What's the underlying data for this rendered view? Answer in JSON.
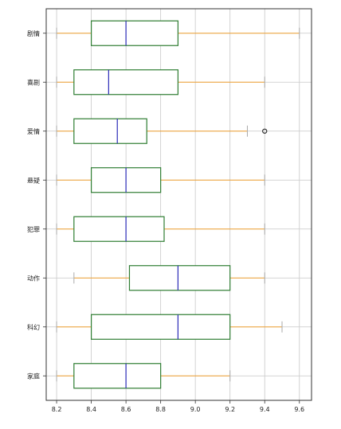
{
  "chart_data": {
    "type": "boxplot",
    "orientation": "horizontal",
    "title": "",
    "xlabel": "",
    "ylabel": "",
    "xlim": [
      8.14,
      9.67
    ],
    "xticks": [
      8.2,
      8.4,
      8.6,
      8.8,
      9.0,
      9.2,
      9.4,
      9.6
    ],
    "xtick_labels": [
      "8.2",
      "8.4",
      "8.6",
      "8.8",
      "9.0",
      "9.2",
      "9.4",
      "9.6"
    ],
    "grid": true,
    "colors": {
      "box": "#2e7d32",
      "median": "#2b2bb8",
      "whisker": "#f0a030",
      "cap": "#aaaaaa",
      "flier": "#222222",
      "grid": "#c8c8c8",
      "axes": "#333333"
    },
    "categories": [
      "剧情",
      "喜剧",
      "爱情",
      "悬疑",
      "犯罪",
      "动作",
      "科幻",
      "家庭"
    ],
    "boxes": [
      {
        "label": "剧情",
        "whislo": 8.2,
        "q1": 8.4,
        "med": 8.6,
        "q3": 8.9,
        "whishi": 9.6,
        "fliers": []
      },
      {
        "label": "喜剧",
        "whislo": 8.2,
        "q1": 8.3,
        "med": 8.5,
        "q3": 8.9,
        "whishi": 9.4,
        "fliers": []
      },
      {
        "label": "爱情",
        "whislo": 8.2,
        "q1": 8.3,
        "med": 8.55,
        "q3": 8.72,
        "whishi": 9.3,
        "fliers": [
          9.4
        ]
      },
      {
        "label": "悬疑",
        "whislo": 8.2,
        "q1": 8.4,
        "med": 8.6,
        "q3": 8.8,
        "whishi": 9.4,
        "fliers": []
      },
      {
        "label": "犯罪",
        "whislo": 8.2,
        "q1": 8.3,
        "med": 8.6,
        "q3": 8.82,
        "whishi": 9.4,
        "fliers": []
      },
      {
        "label": "动作",
        "whislo": 8.3,
        "q1": 8.62,
        "med": 8.9,
        "q3": 9.2,
        "whishi": 9.4,
        "fliers": []
      },
      {
        "label": "科幻",
        "whislo": 8.2,
        "q1": 8.4,
        "med": 8.9,
        "q3": 9.2,
        "whishi": 9.5,
        "fliers": []
      },
      {
        "label": "家庭",
        "whislo": 8.2,
        "q1": 8.3,
        "med": 8.6,
        "q3": 8.8,
        "whishi": 9.2,
        "fliers": []
      }
    ]
  }
}
